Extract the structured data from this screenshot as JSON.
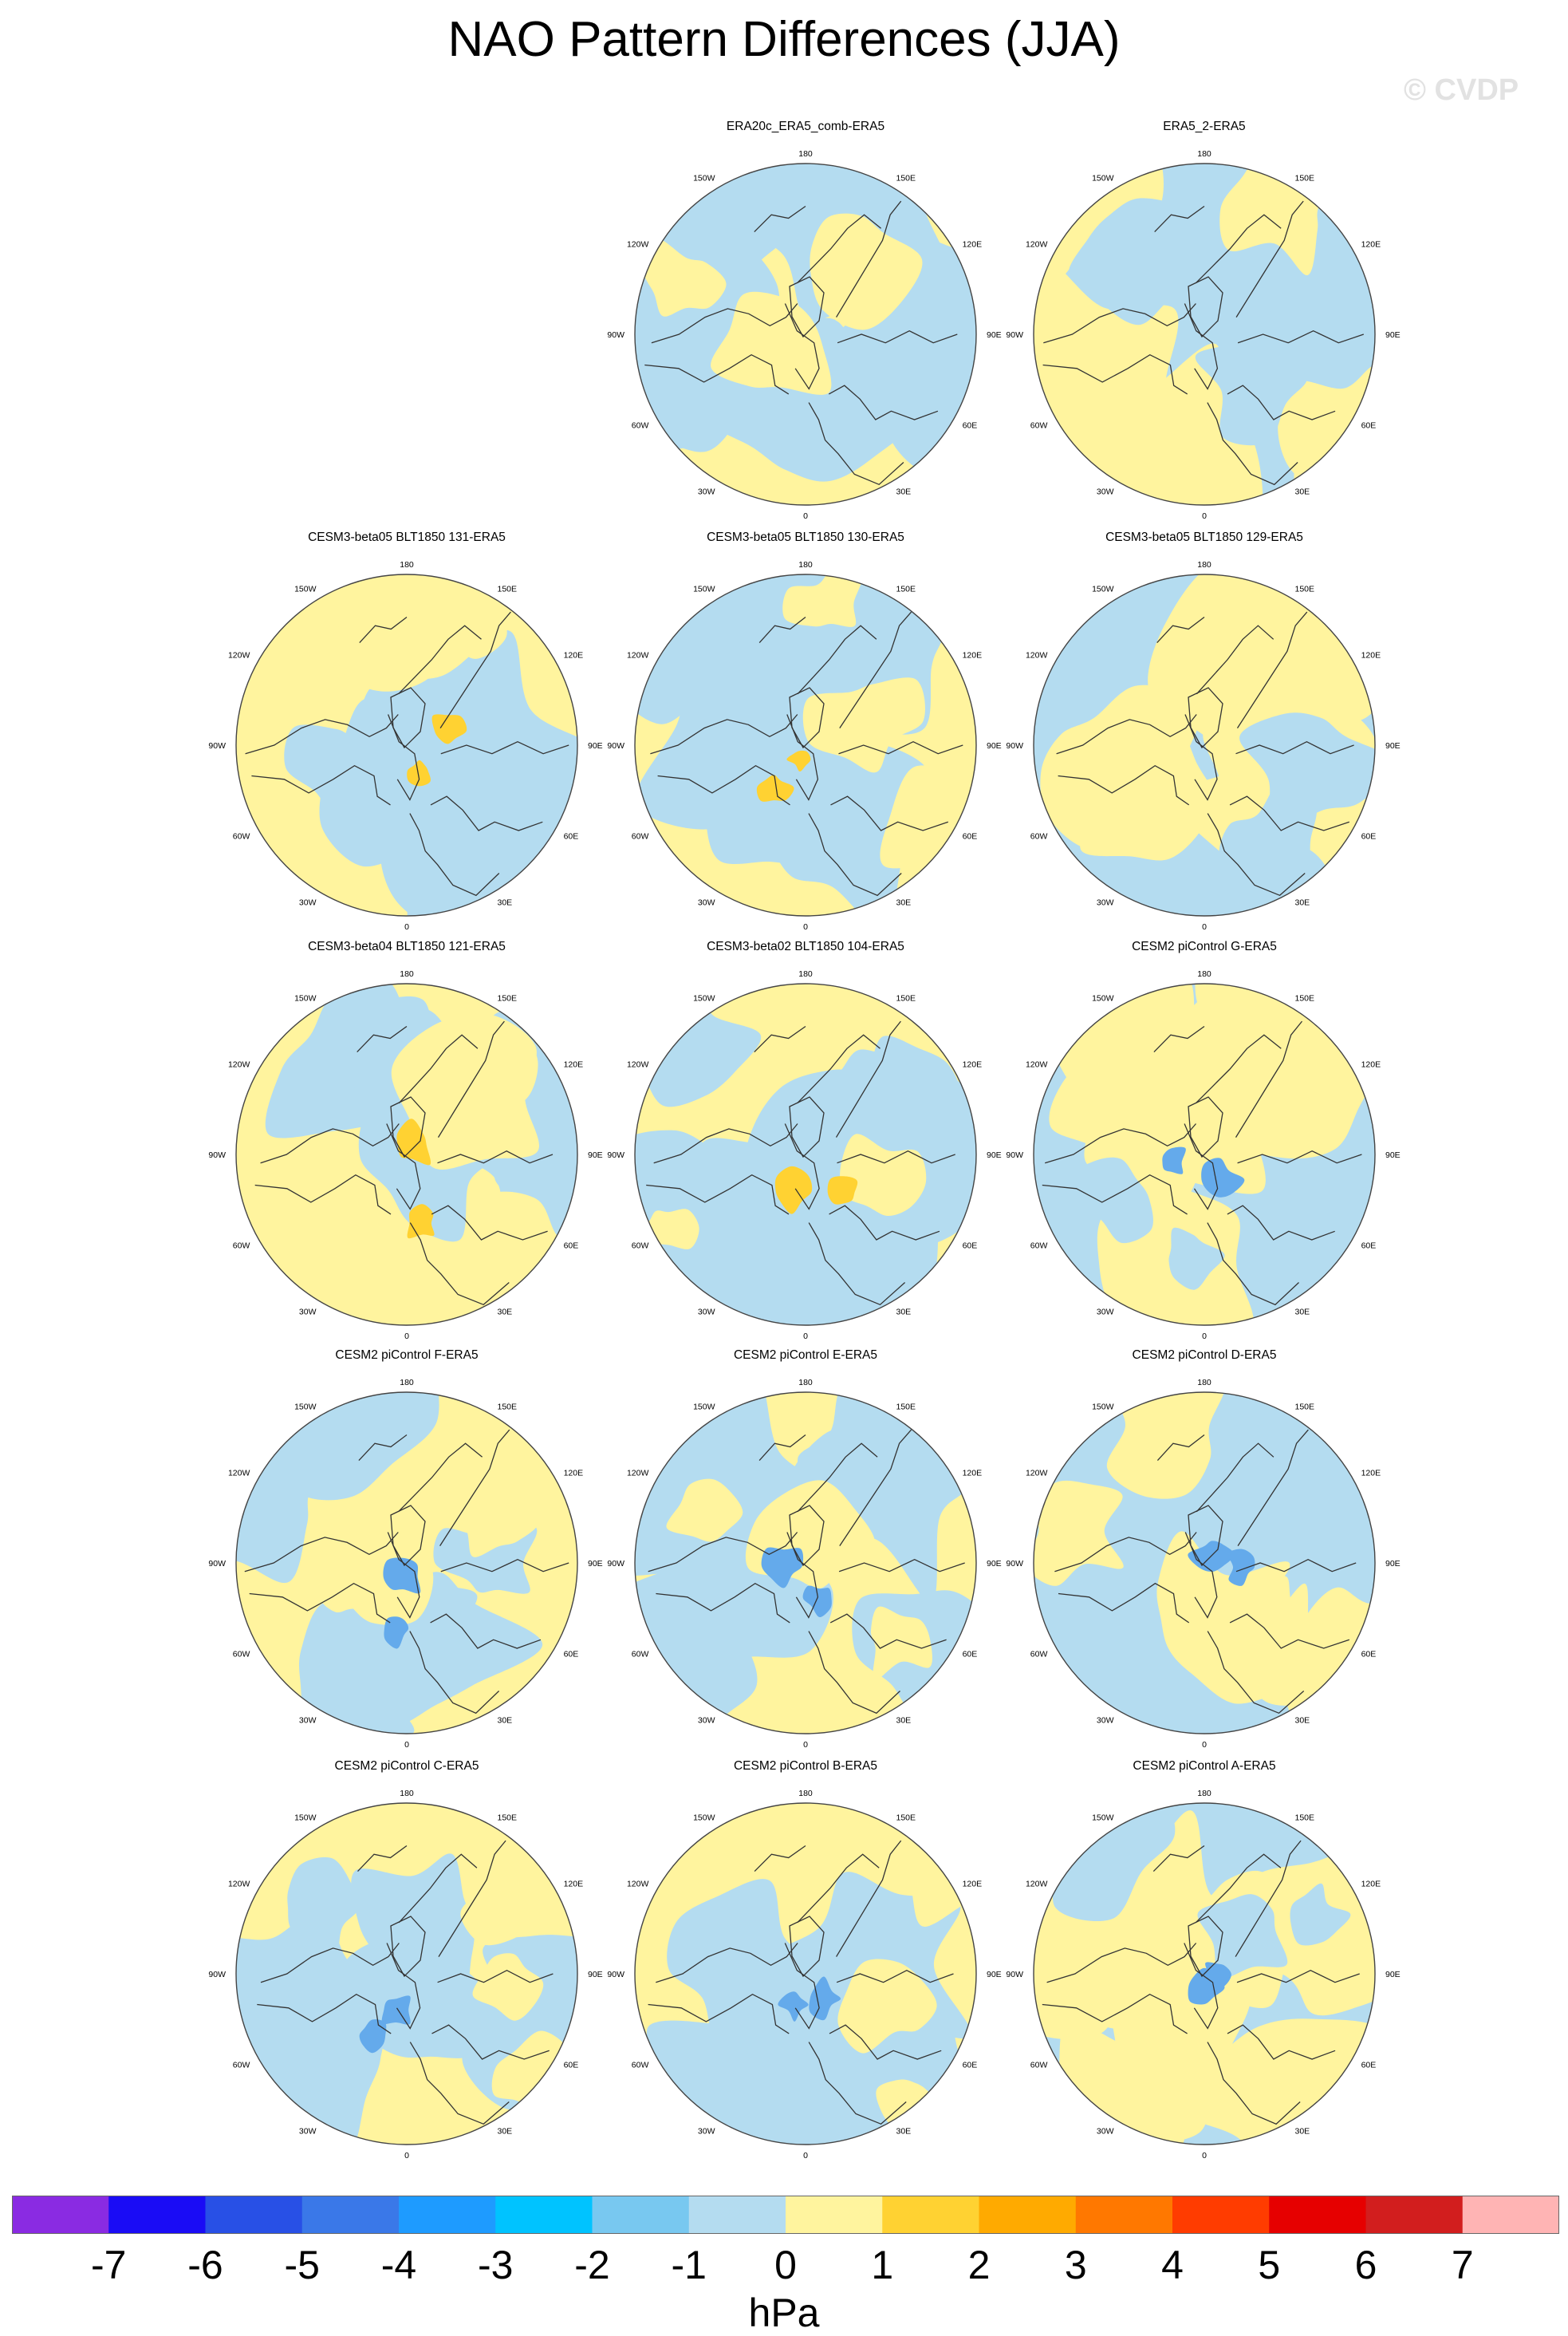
{
  "title": "NAO Pattern Differences (JJA)",
  "watermark": "© CVDP",
  "longitude_labels": [
    "180",
    "150E",
    "120E",
    "90E",
    "60E",
    "30E",
    "0",
    "30W",
    "60W",
    "90W",
    "120W",
    "150W"
  ],
  "colors": {
    "lt_blue": "#b4dcf0",
    "mid_blue": "#8cc8f0",
    "blue": "#64aaeb",
    "lt_yellow": "#fff49e",
    "gold": "#ffd232",
    "orange": "#ffaa00"
  },
  "panels": [
    {
      "title": "ERA20c_ERA5_comb-ERA5"
    },
    {
      "title": "ERA5_2-ERA5"
    },
    {
      "title": "CESM3-beta05 BLT1850 131-ERA5"
    },
    {
      "title": "CESM3-beta05 BLT1850 130-ERA5"
    },
    {
      "title": "CESM3-beta05 BLT1850 129-ERA5"
    },
    {
      "title": "CESM3-beta04 BLT1850 121-ERA5"
    },
    {
      "title": "CESM3-beta02 BLT1850 104-ERA5"
    },
    {
      "title": "CESM2 piControl G-ERA5"
    },
    {
      "title": "CESM2 piControl F-ERA5"
    },
    {
      "title": "CESM2 piControl E-ERA5"
    },
    {
      "title": "CESM2 piControl D-ERA5"
    },
    {
      "title": "CESM2 piControl C-ERA5"
    },
    {
      "title": "CESM2 piControl B-ERA5"
    },
    {
      "title": "CESM2 piControl A-ERA5"
    }
  ],
  "colorbar": {
    "unit": "hPa",
    "tick_labels": [
      "-7",
      "-6",
      "-5",
      "-4",
      "-3",
      "-2",
      "-1",
      "0",
      "1",
      "2",
      "3",
      "4",
      "5",
      "6",
      "7"
    ],
    "colors": [
      "#8a2be2",
      "#1a0cf5",
      "#2850e6",
      "#3a78e8",
      "#1e9bff",
      "#00c3ff",
      "#78c8f0",
      "#b4dcf0",
      "#fff49e",
      "#ffd232",
      "#ffaa00",
      "#ff7800",
      "#ff3c00",
      "#e60000",
      "#d21e1e",
      "#ffb4b4"
    ]
  }
}
